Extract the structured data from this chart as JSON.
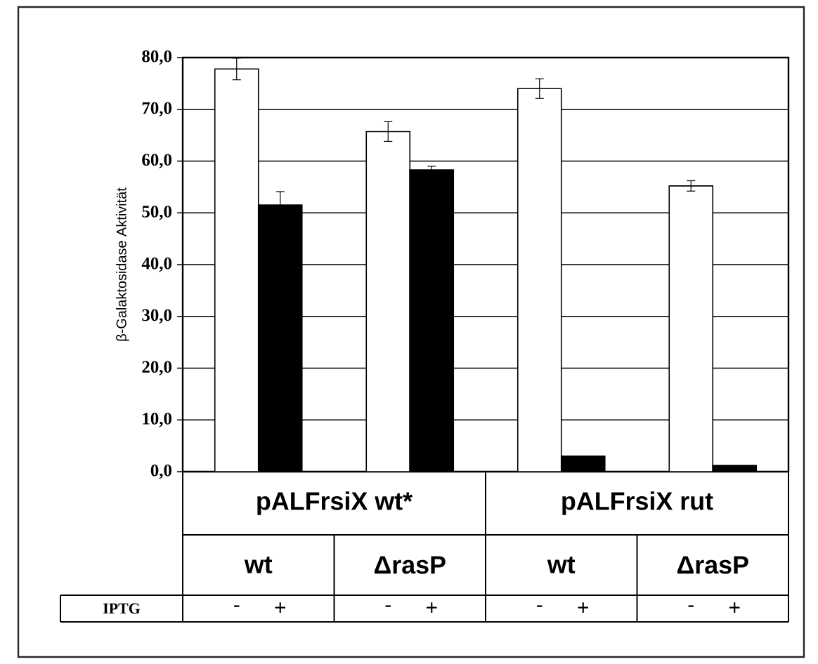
{
  "chart_data": {
    "type": "bar",
    "ylabel": "β-Galaktosidase Aktivität",
    "categories": [
      "-",
      "+",
      "-",
      "+",
      "-",
      "+",
      "-",
      "+"
    ],
    "values": [
      77.8,
      51.5,
      65.7,
      58.3,
      74.0,
      3.0,
      55.2,
      1.2
    ],
    "colors": [
      "#ffffff",
      "#000000",
      "#ffffff",
      "#000000",
      "#ffffff",
      "#000000",
      "#ffffff",
      "#000000"
    ],
    "errors": [
      2.1,
      2.6,
      1.9,
      0.7,
      1.9,
      null,
      1.0,
      null
    ],
    "ylim": [
      0,
      80
    ],
    "yticks": [
      {
        "value": 0,
        "label": "0,0"
      },
      {
        "value": 10,
        "label": "10,0"
      },
      {
        "value": 20,
        "label": "20,0"
      },
      {
        "value": 30,
        "label": "30,0"
      },
      {
        "value": 40,
        "label": "40,0"
      },
      {
        "value": 50,
        "label": "50,0"
      },
      {
        "value": 60,
        "label": "60,0"
      },
      {
        "value": 70,
        "label": "70,0"
      },
      {
        "value": 80,
        "label": "80,0"
      }
    ],
    "grid": "y",
    "annotations": [
      "pALFrsiX wt*",
      "pALFrsiX rut",
      "wt",
      "ΔrasP",
      "wt",
      "ΔrasP",
      "IPTG"
    ]
  }
}
